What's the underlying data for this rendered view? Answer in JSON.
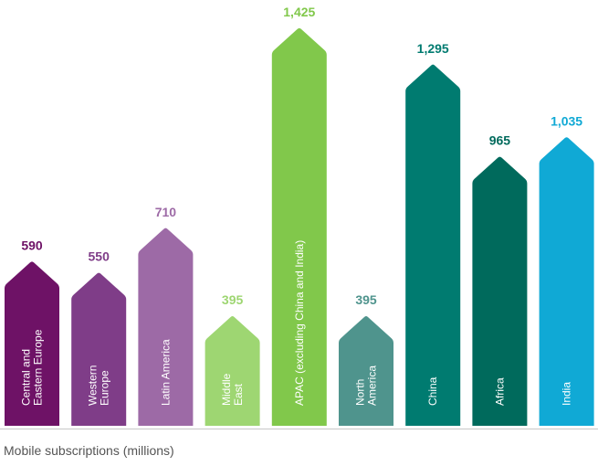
{
  "chart_data": {
    "type": "bar",
    "categories": [
      "Central and Eastern Europe",
      "Western Europe",
      "Latin America",
      "Middle East",
      "APAC (excluding China and India)",
      "North America",
      "China",
      "Africa",
      "India"
    ],
    "category_lines": [
      [
        "Central and",
        "Eastern Europe"
      ],
      [
        "Western",
        "Europe"
      ],
      [
        "Latin America"
      ],
      [
        "Middle",
        "East"
      ],
      [
        "APAC (excluding China and India)"
      ],
      [
        "North",
        "America"
      ],
      [
        "China"
      ],
      [
        "Africa"
      ],
      [
        "India"
      ]
    ],
    "values": [
      590,
      550,
      710,
      395,
      1425,
      395,
      1295,
      965,
      1035
    ],
    "value_labels": [
      "590",
      "550",
      "710",
      "395",
      "1,425",
      "395",
      "1,295",
      "965",
      "1,035"
    ],
    "colors": [
      "#6e1266",
      "#7f3d88",
      "#9d6aa6",
      "#9ed672",
      "#81c84b",
      "#4f948d",
      "#007b70",
      "#006a5c",
      "#10a9d5"
    ],
    "ylim": [
      0,
      1425
    ],
    "grid": false,
    "legend": "none",
    "xlabel": "Mobile subscriptions (millions)"
  }
}
